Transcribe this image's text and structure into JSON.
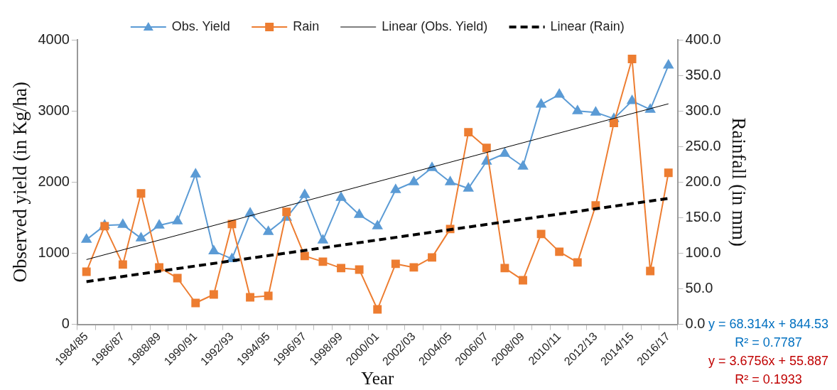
{
  "chart_data": {
    "type": "line",
    "xlabel": "Year",
    "ylabel": "Observed yield (in Kg/ha)",
    "y2label": "Rainfall (in mm)",
    "categories": [
      "1984/85",
      null,
      "1986/87",
      null,
      "1988/89",
      null,
      "1990/91",
      null,
      "1992/93",
      null,
      "1994/95",
      null,
      "1996/97",
      null,
      "1998/99",
      null,
      "2000/01",
      null,
      "2002/03",
      null,
      "2004/05",
      null,
      "2006/07",
      null,
      "2008/09",
      null,
      "2010/11",
      null,
      "2012/13",
      null,
      "2014/15",
      null,
      "2016/17"
    ],
    "series": [
      {
        "name": "Obs. Yield",
        "color": "#5b9bd5",
        "marker": "triangle",
        "values": [
          1190,
          1390,
          1400,
          1210,
          1390,
          1450,
          2110,
          1030,
          920,
          1560,
          1300,
          1500,
          1820,
          1180,
          1780,
          1540,
          1380,
          1890,
          2000,
          2200,
          2000,
          1910,
          2290,
          2400,
          2220,
          3090,
          3230,
          3000,
          2980,
          2890,
          3140,
          3020,
          3640
        ]
      },
      {
        "name": "Rain",
        "color": "#ed7d31",
        "marker": "square",
        "axis": "y2",
        "values": [
          74,
          138,
          84,
          184,
          80,
          65,
          30,
          42,
          141,
          38,
          40,
          158,
          96,
          88,
          79,
          77,
          21,
          85,
          80,
          94,
          134,
          270,
          248,
          79,
          62,
          127,
          102,
          87,
          167,
          283,
          373,
          75,
          213
        ]
      },
      {
        "name": "Linear (Obs. Yield)",
        "color": "#000000",
        "marker": "none",
        "line_style": "solid",
        "x": [
          "1984/85",
          "2016/17"
        ],
        "values": [
          910,
          3100
        ]
      },
      {
        "name": "Linear (Rain)",
        "color": "#000000",
        "marker": "none",
        "line_style": "dashed",
        "axis": "y2",
        "x": [
          "1984/85",
          "2016/17"
        ],
        "values": [
          60,
          177
        ]
      }
    ],
    "ylim": [
      0,
      4000
    ],
    "yticks": [
      0,
      1000,
      2000,
      3000,
      4000
    ],
    "y2lim": [
      0,
      400
    ],
    "y2ticks": [
      {
        "value": 0,
        "label": "0.0"
      },
      {
        "value": 50,
        "label": "50.0"
      },
      {
        "value": 100,
        "label": "100.0"
      },
      {
        "value": 150,
        "label": "150.0"
      },
      {
        "value": 200,
        "label": "200.0"
      },
      {
        "value": 250,
        "label": "250.0"
      },
      {
        "value": 300,
        "label": "300.0"
      },
      {
        "value": 350,
        "label": "350.0"
      },
      {
        "value": 400,
        "label": "400.0"
      }
    ],
    "grid": false,
    "legend": "top",
    "annotations": [
      "y = 68.314x + 844.53",
      "R² = 0.7787",
      "y = 3.6756x + 55.887",
      "R² = 0.1933"
    ]
  }
}
